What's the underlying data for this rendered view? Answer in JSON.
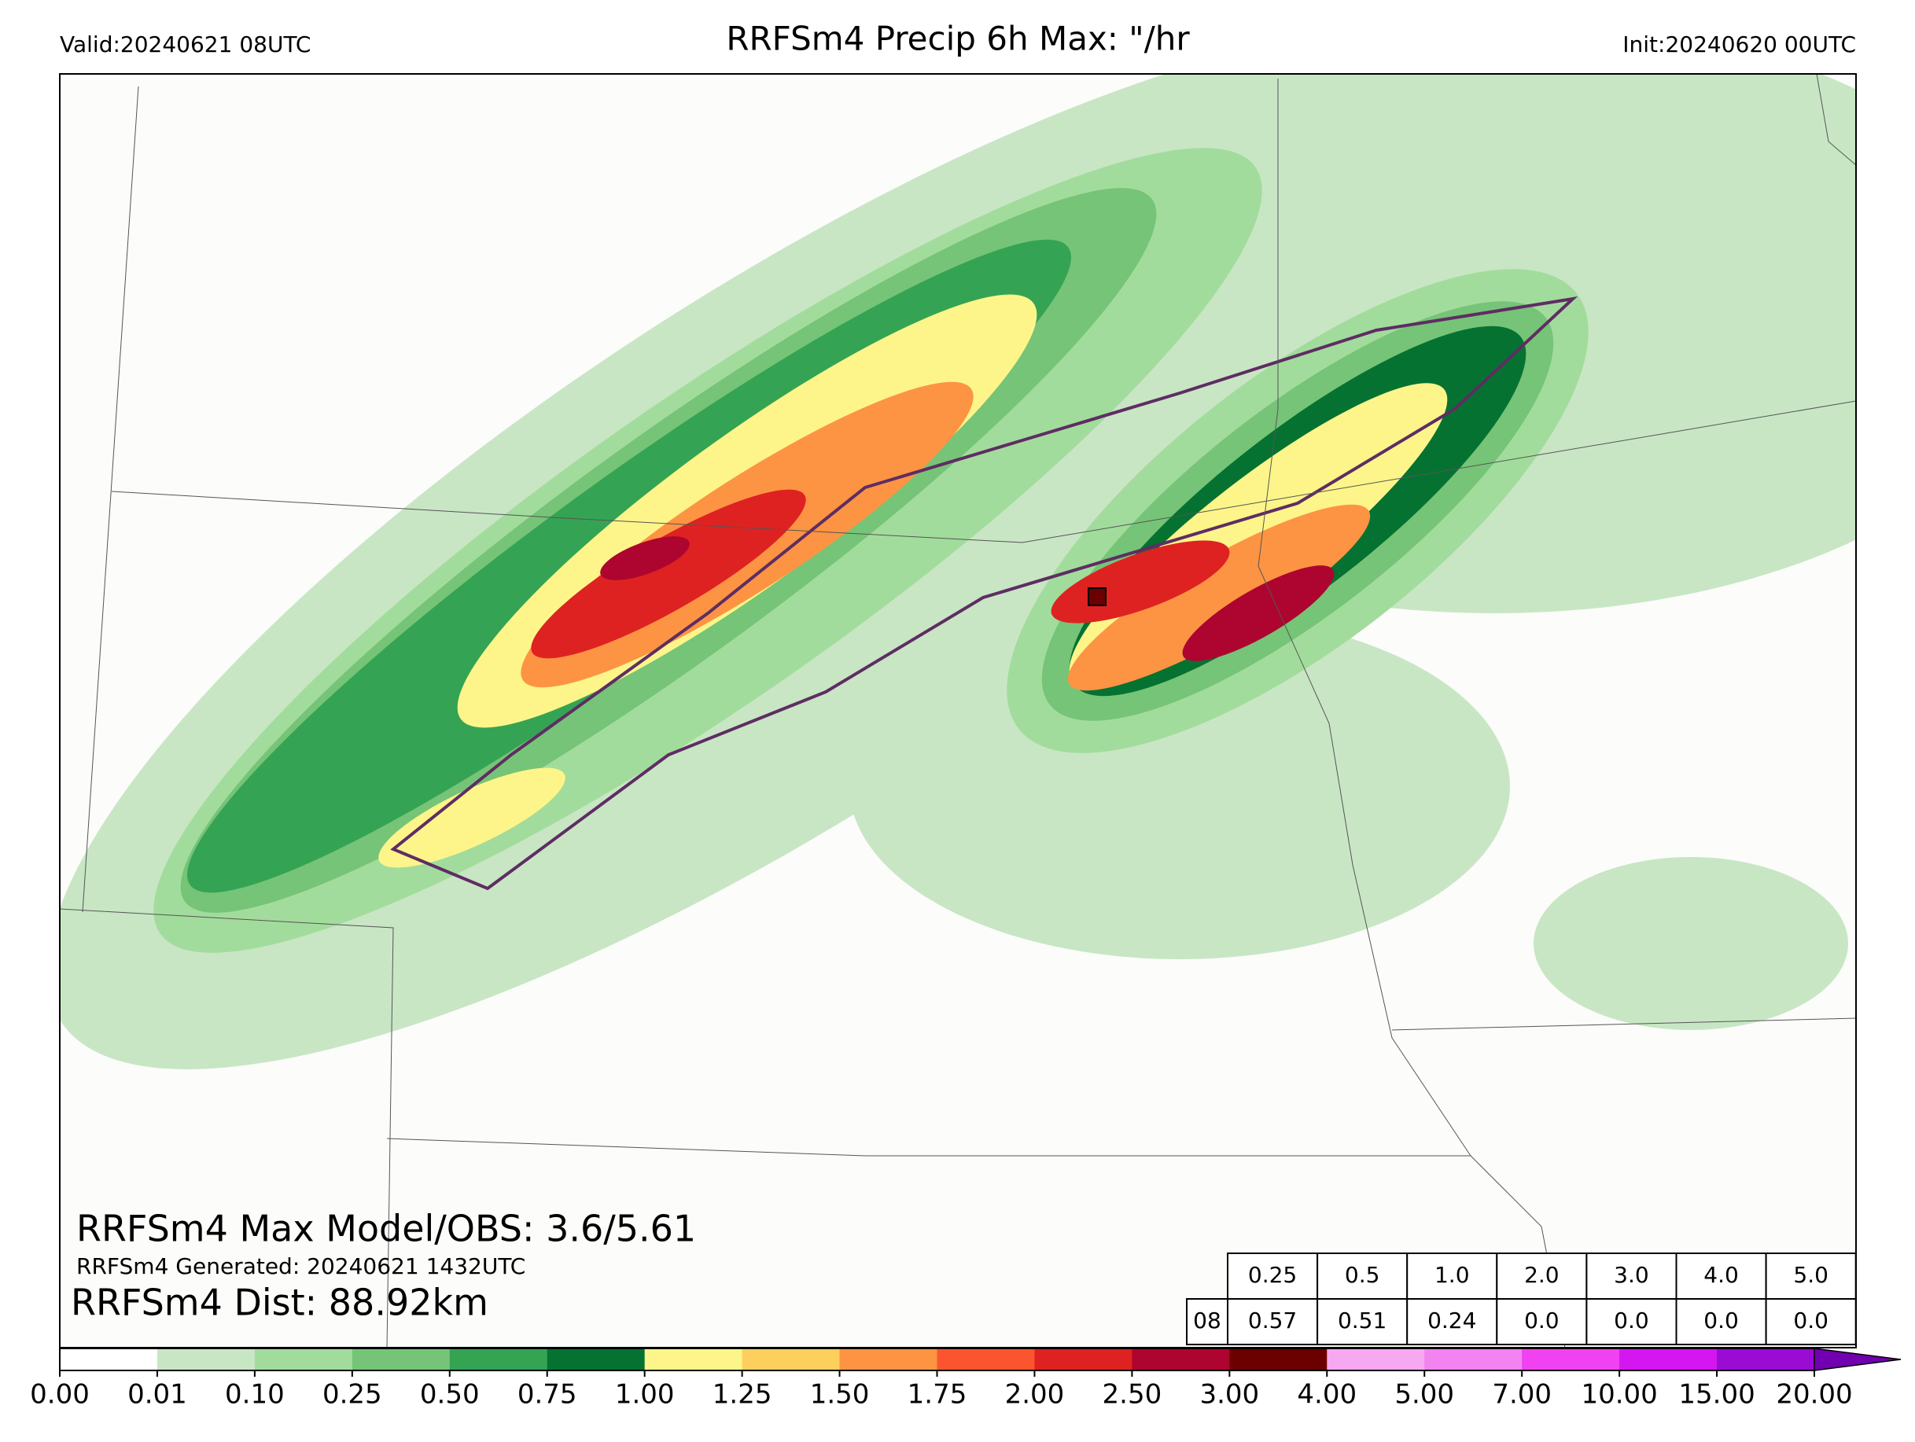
{
  "header": {
    "valid": "Valid:20240621 08UTC",
    "title": "RRFSm4 Precip 6h Max: \"/hr",
    "init": "Init:20240620 00UTC"
  },
  "annotations": {
    "max": "RRFSm4 Max Model/OBS: 3.6/5.61",
    "generated": "RRFSm4 Generated: 20240621 1432UTC",
    "dist": "RRFSm4 Dist: 88.92km"
  },
  "table": {
    "header": [
      "0.25",
      "0.5",
      "1.0",
      "2.0",
      "3.0",
      "4.0",
      "5.0"
    ],
    "row_label": "08",
    "values": [
      "0.57",
      "0.51",
      "0.24",
      "0.0",
      "0.0",
      "0.0",
      "0.0"
    ]
  },
  "colorbar": {
    "levels": [
      "0.00",
      "0.01",
      "0.10",
      "0.25",
      "0.50",
      "0.75",
      "1.00",
      "1.25",
      "1.50",
      "1.75",
      "2.00",
      "2.50",
      "3.00",
      "4.00",
      "5.00",
      "7.00",
      "10.00",
      "15.00",
      "20.00"
    ],
    "colors": [
      "#ffffff",
      "#c8e6c4",
      "#a2dc9c",
      "#76c477",
      "#35a354",
      "#067231",
      "#fdf58a",
      "#fecf5c",
      "#fd9443",
      "#fb5530",
      "#de2222",
      "#ad0530",
      "#6b0000",
      "#f6a8f0",
      "#f283f0",
      "#f042f0",
      "#d416f0",
      "#9a0bd4"
    ],
    "extend_color": "#7000b0"
  }
}
